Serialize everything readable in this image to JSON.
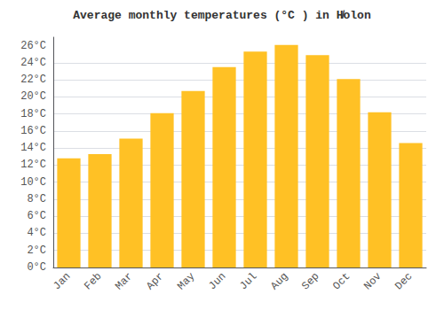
{
  "chart_data": {
    "type": "bar",
    "title": "Average monthly temperatures (°C ) in H̸olon",
    "categories": [
      "Jan",
      "Feb",
      "Mar",
      "Apr",
      "May",
      "Jun",
      "Jul",
      "Aug",
      "Sep",
      "Oct",
      "Nov",
      "Dec"
    ],
    "values": [
      12.8,
      13.3,
      15.1,
      18.1,
      20.7,
      23.5,
      25.3,
      26.1,
      24.9,
      22.1,
      18.2,
      14.6
    ],
    "color": "#FFC125",
    "ylim": [
      0,
      27
    ],
    "yticks": [
      {
        "value": 0,
        "label": "0°C"
      },
      {
        "value": 2,
        "label": "2°C"
      },
      {
        "value": 4,
        "label": "4°C"
      },
      {
        "value": 6,
        "label": "6°C"
      },
      {
        "value": 8,
        "label": "8°C"
      },
      {
        "value": 10,
        "label": "10°C"
      },
      {
        "value": 12,
        "label": "12°C"
      },
      {
        "value": 14,
        "label": "14°C"
      },
      {
        "value": 16,
        "label": "16°C"
      },
      {
        "value": 18,
        "label": "18°C"
      },
      {
        "value": 20,
        "label": "20°C"
      },
      {
        "value": 22,
        "label": "22°C"
      },
      {
        "value": 24,
        "label": "24°C"
      },
      {
        "value": 26,
        "label": "26°C"
      }
    ],
    "grid": true
  }
}
